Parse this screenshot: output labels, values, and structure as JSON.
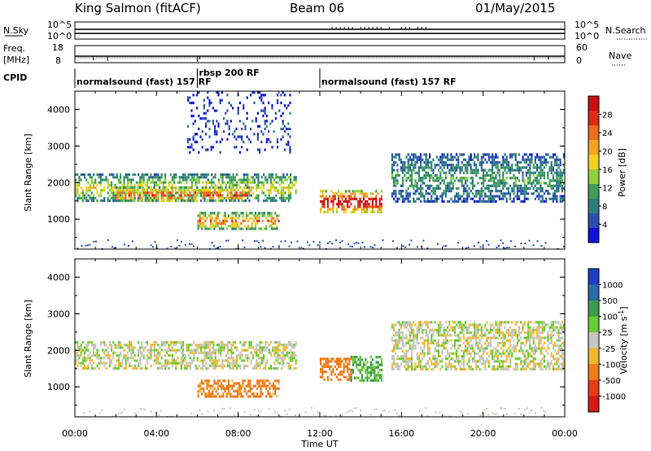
{
  "header": {
    "station": "King Salmon (fitACF)",
    "beam": "Beam 06",
    "date": "01/May/2015"
  },
  "time_axis": {
    "label": "Time UT",
    "ticks": [
      "00:00",
      "04:00",
      "08:00",
      "12:00",
      "16:00",
      "20:00",
      "00:00"
    ],
    "range_hours": [
      0,
      24
    ]
  },
  "info_panels": {
    "nsky_label": "N.Sky",
    "nsky_ticks": [
      "10^5",
      "10^0"
    ],
    "nsearch_label": "N.Search",
    "nsearch_ticks": [
      "10^5",
      "10^0"
    ],
    "freq_label": "Freq.",
    "freq_unit": "[MHz]",
    "freq_ticks": [
      "18",
      "8"
    ],
    "nave_label": "Nave",
    "nave_ticks": [
      "60",
      "0"
    ],
    "cpid_label": "CPID",
    "modes": [
      {
        "text": "normalsound (fast) 157 RF",
        "start_hour": 0
      },
      {
        "text": "rbsp 200 RF",
        "start_hour": 6
      },
      {
        "text": "normalsound (fast) 157 RF",
        "start_hour": 12
      }
    ]
  },
  "chart_data": [
    {
      "type": "heatmap",
      "name": "Power",
      "ylabel": "Slant Range [km]",
      "xlabel": "",
      "ylim": [
        180,
        4500
      ],
      "yticks": [
        "1000",
        "2000",
        "3000",
        "4000"
      ],
      "colorbar": {
        "label": "Power [dB]",
        "ticks": [
          "4",
          "8",
          "12",
          "16",
          "20",
          "24",
          "28"
        ],
        "colors": [
          "#1111dd",
          "#2a4fb0",
          "#2e7d7d",
          "#3e9e5a",
          "#8fd03a",
          "#f2d21c",
          "#f5a422",
          "#ee6c1a",
          "#e02a14",
          "#c81010"
        ]
      },
      "regions": [
        {
          "t0": 0.0,
          "t1": 10.8,
          "r0": 1500,
          "r1": 2250,
          "level": 0.35
        },
        {
          "t0": 2.0,
          "t1": 8.5,
          "r0": 1500,
          "r1": 1900,
          "level": 0.55
        },
        {
          "t0": 6.0,
          "t1": 10.0,
          "r0": 750,
          "r1": 1200,
          "level": 0.5
        },
        {
          "t0": 12.0,
          "t1": 15.0,
          "r0": 1200,
          "r1": 1800,
          "level": 0.7
        },
        {
          "t0": 15.5,
          "t1": 24.0,
          "r0": 1500,
          "r1": 2800,
          "level": 0.2
        },
        {
          "t0": 5.5,
          "t1": 10.5,
          "r0": 2800,
          "r1": 4500,
          "level": 0.05
        }
      ]
    },
    {
      "type": "heatmap",
      "name": "Velocity",
      "ylabel": "Slant Range [km]",
      "xlabel": "Time UT",
      "ylim": [
        180,
        4500
      ],
      "yticks": [
        "1000",
        "2000",
        "3000",
        "4000"
      ],
      "colorbar": {
        "label": "Velocity [m s",
        "label_sup": "-1",
        "label_end": "]",
        "ticks": [
          "1000",
          "500",
          "100",
          "25",
          "-25",
          "-100",
          "-500",
          "-1000"
        ],
        "colors": [
          "#1e3ec8",
          "#2a6aa8",
          "#3d9a4d",
          "#66cc33",
          "#c6c6c0",
          "#f2b830",
          "#f07b18",
          "#e83a14",
          "#d81818"
        ]
      },
      "regions": [
        {
          "t0": 0.0,
          "t1": 10.8,
          "r0": 1500,
          "r1": 2250,
          "level": 0.0
        },
        {
          "t0": 6.0,
          "t1": 10.0,
          "r0": 750,
          "r1": 1200,
          "level": -150
        },
        {
          "t0": 12.0,
          "t1": 13.5,
          "r0": 1200,
          "r1": 1800,
          "level": -200
        },
        {
          "t0": 13.5,
          "t1": 15.0,
          "r0": 1200,
          "r1": 1850,
          "level": 100
        },
        {
          "t0": 15.5,
          "t1": 24.0,
          "r0": 1500,
          "r1": 2800,
          "level": 0.0
        }
      ]
    }
  ]
}
